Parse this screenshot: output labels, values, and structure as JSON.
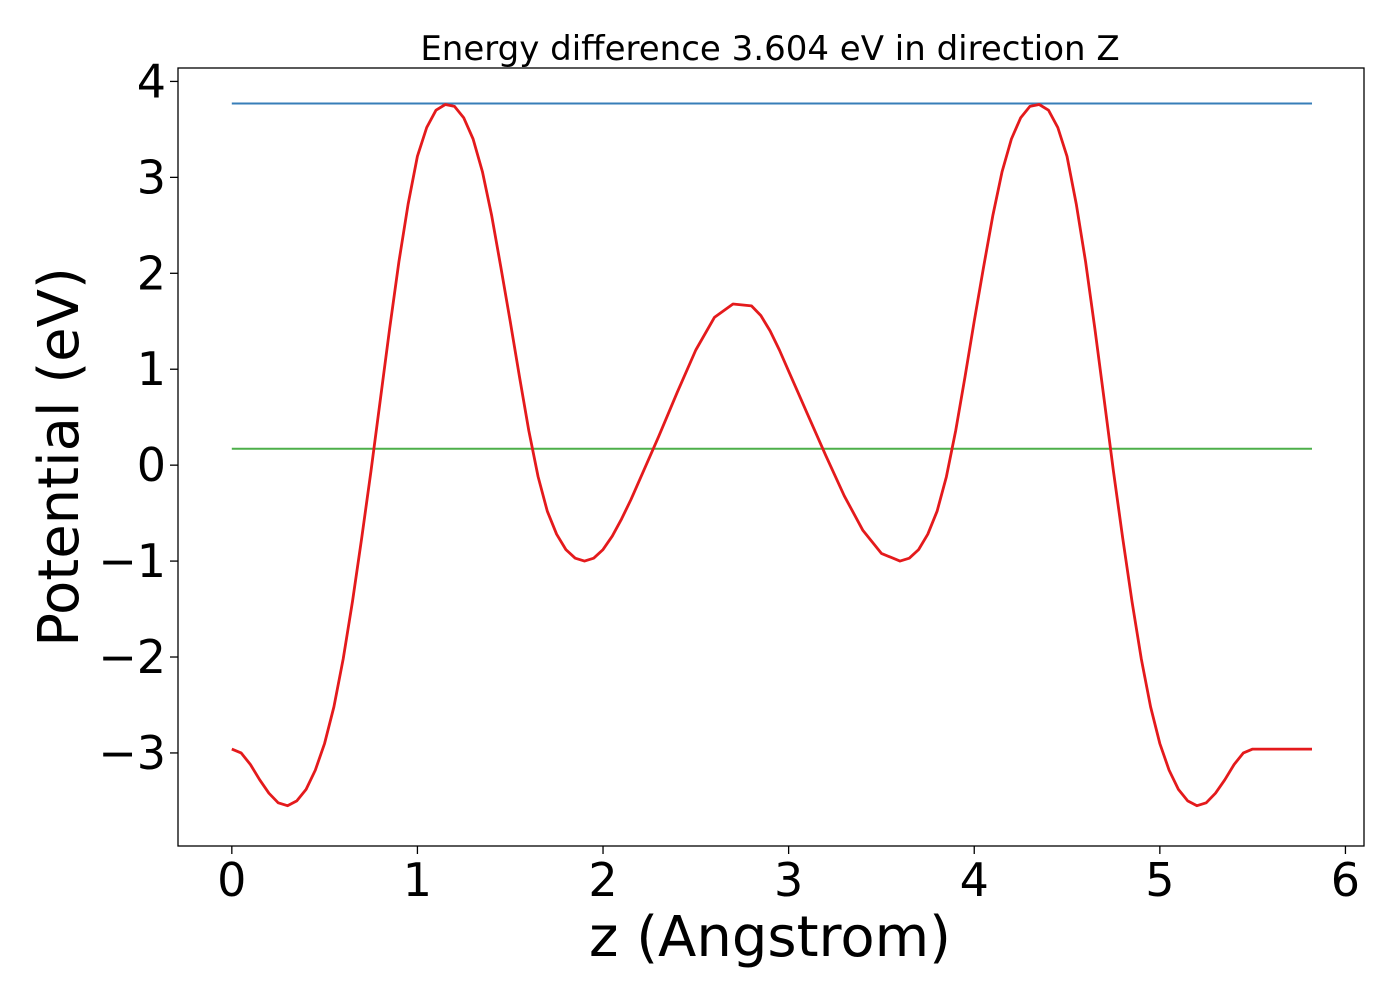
{
  "chart_data": {
    "type": "line",
    "title": "Energy difference 3.604 eV in direction Z",
    "xlabel": "z (Angstrom)",
    "ylabel": "Potential (eV)",
    "xlim": [
      -0.29,
      6.1
    ],
    "ylim": [
      -3.97,
      4.14
    ],
    "xticks": [
      0,
      1,
      2,
      3,
      4,
      5,
      6
    ],
    "xtick_labels": [
      "0",
      "1",
      "2",
      "3",
      "4",
      "5",
      "6"
    ],
    "yticks": [
      -3,
      -2,
      -1,
      0,
      1,
      2,
      3,
      4
    ],
    "ytick_labels": [
      "−3",
      "−2",
      "−1",
      "0",
      "1",
      "2",
      "3",
      "4"
    ],
    "grid": false,
    "series": [
      {
        "color": "#e41a1c",
        "x": [
          0.0,
          0.05,
          0.1,
          0.15,
          0.2,
          0.25,
          0.3,
          0.35,
          0.4,
          0.45,
          0.5,
          0.55,
          0.6,
          0.65,
          0.7,
          0.75,
          0.8,
          0.85,
          0.9,
          0.95,
          1.0,
          1.05,
          1.1,
          1.15,
          1.2,
          1.25,
          1.3,
          1.35,
          1.4,
          1.45,
          1.5,
          1.55,
          1.6,
          1.65,
          1.7,
          1.75,
          1.8,
          1.85,
          1.9,
          1.95,
          2.0,
          2.05,
          2.1,
          2.15,
          2.2,
          2.3,
          2.4,
          2.5,
          2.6,
          2.7,
          2.8,
          2.85,
          2.9,
          2.95,
          3.0,
          3.05,
          3.1,
          3.2,
          3.3,
          3.4,
          3.5,
          3.6,
          3.65,
          3.7,
          3.75,
          3.8,
          3.85,
          3.9,
          3.95,
          4.0,
          4.05,
          4.1,
          4.15,
          4.2,
          4.25,
          4.3,
          4.35,
          4.4,
          4.45,
          4.5,
          4.55,
          4.6,
          4.65,
          4.7,
          4.75,
          4.8,
          4.85,
          4.9,
          4.95,
          5.0,
          5.05,
          5.1,
          5.15,
          5.2,
          5.25,
          5.3,
          5.35,
          5.4,
          5.45,
          5.5,
          5.55,
          5.6,
          5.65,
          5.7,
          5.75,
          5.82
        ],
        "y": [
          -2.96,
          -3.0,
          -3.12,
          -3.28,
          -3.42,
          -3.52,
          -3.55,
          -3.5,
          -3.38,
          -3.18,
          -2.9,
          -2.52,
          -2.02,
          -1.42,
          -0.76,
          -0.06,
          0.68,
          1.42,
          2.12,
          2.72,
          3.22,
          3.52,
          3.7,
          3.76,
          3.74,
          3.62,
          3.4,
          3.06,
          2.6,
          2.06,
          1.5,
          0.92,
          0.36,
          -0.12,
          -0.48,
          -0.72,
          -0.88,
          -0.97,
          -1.0,
          -0.97,
          -0.88,
          -0.74,
          -0.56,
          -0.36,
          -0.14,
          0.3,
          0.76,
          1.2,
          1.54,
          1.68,
          1.66,
          1.56,
          1.4,
          1.2,
          0.98,
          0.76,
          0.54,
          0.1,
          -0.32,
          -0.68,
          -0.92,
          -1.0,
          -0.97,
          -0.88,
          -0.72,
          -0.48,
          -0.12,
          0.36,
          0.92,
          1.5,
          2.06,
          2.6,
          3.06,
          3.4,
          3.62,
          3.74,
          3.76,
          3.7,
          3.52,
          3.22,
          2.72,
          2.12,
          1.42,
          0.68,
          -0.06,
          -0.76,
          -1.42,
          -2.02,
          -2.52,
          -2.9,
          -3.18,
          -3.38,
          -3.5,
          -3.55,
          -3.52,
          -3.42,
          -3.28,
          -3.12,
          -3.0,
          -2.96,
          -2.96,
          -2.96,
          -2.96,
          -2.96,
          -2.96,
          -2.96
        ]
      },
      {
        "color": "#377eb8",
        "x": [
          0.0,
          5.82
        ],
        "y": [
          3.77,
          3.77
        ]
      },
      {
        "color": "#4daf4a",
        "x": [
          0.0,
          5.82
        ],
        "y": [
          0.17,
          0.17
        ]
      }
    ]
  }
}
